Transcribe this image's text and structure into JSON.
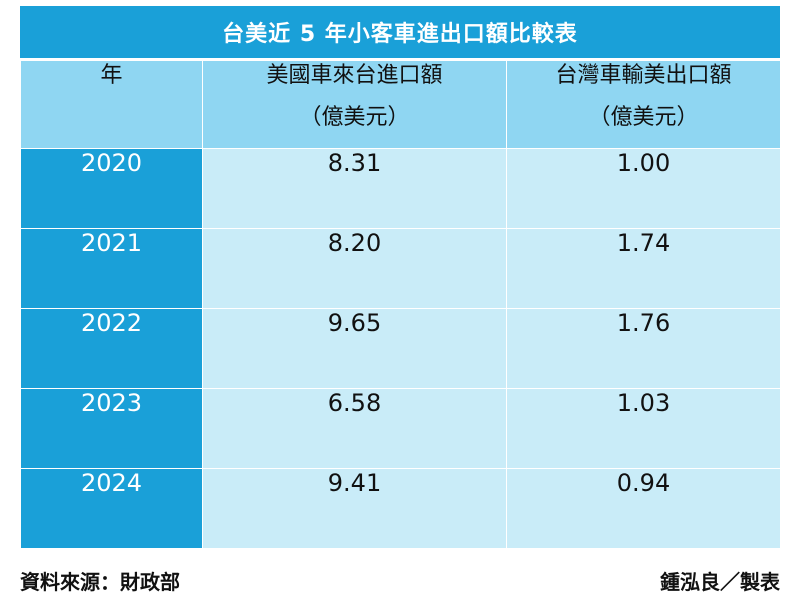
{
  "title": "台美近 5 年小客車進出口額比較表",
  "table": {
    "header_year": "年",
    "header_col1": "美國車來台進口額",
    "header_col2": "台灣車輸美出口額",
    "unit_col1": "（億美元）",
    "unit_col2": "（億美元）"
  },
  "chart_data": {
    "type": "table",
    "title": "台美近 5 年小客車進出口額比較表",
    "columns": [
      "年",
      "美國車來台進口額（億美元）",
      "台灣車輸美出口額（億美元）"
    ],
    "rows": [
      {
        "year": "2020",
        "import": "8.31",
        "export": "1.00"
      },
      {
        "year": "2021",
        "import": "8.20",
        "export": "1.74"
      },
      {
        "year": "2022",
        "import": "9.65",
        "export": "1.76"
      },
      {
        "year": "2023",
        "import": "6.58",
        "export": "1.03"
      },
      {
        "year": "2024",
        "import": "9.41",
        "export": "0.94"
      }
    ]
  },
  "footer": {
    "source": "資料來源：財政部",
    "author": "鍾泓良／製表"
  },
  "colors": {
    "title_bg": "#1aa0d8",
    "header_bg": "#8fd6f2",
    "year_bg": "#1aa0d8",
    "cell_bg": "#c9ecf8"
  }
}
